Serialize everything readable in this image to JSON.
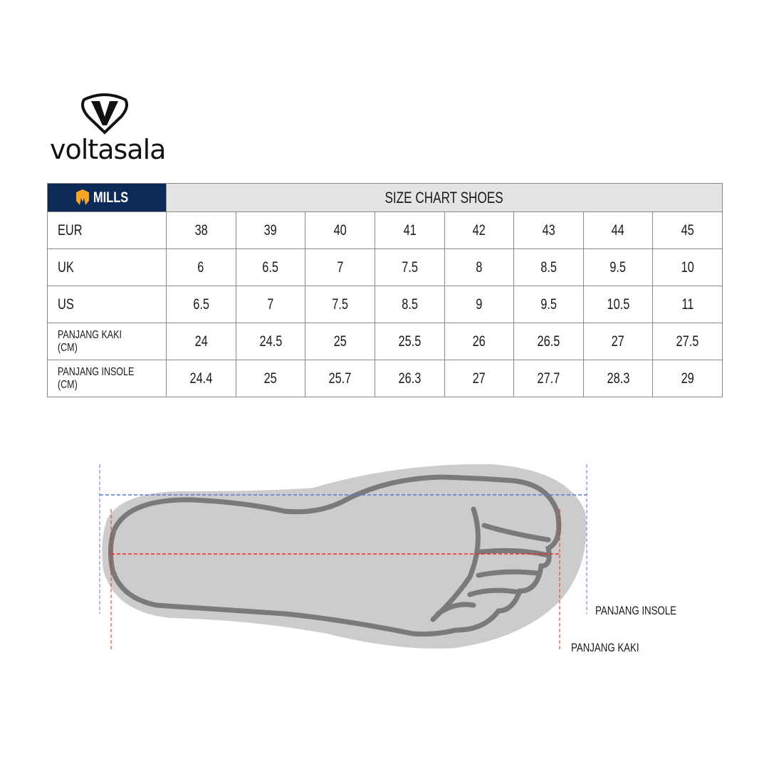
{
  "brand": {
    "logo_text": "voltasala",
    "sub_brand": "MILLS"
  },
  "table": {
    "title": "SIZE CHART SHOES",
    "rows": [
      {
        "label": "EUR",
        "values": [
          "38",
          "39",
          "40",
          "41",
          "42",
          "43",
          "44",
          "45"
        ]
      },
      {
        "label": "UK",
        "values": [
          "6",
          "6.5",
          "7",
          "7.5",
          "8",
          "8.5",
          "9.5",
          "10"
        ]
      },
      {
        "label": "US",
        "values": [
          "6.5",
          "7",
          "7.5",
          "8.5",
          "9",
          "9.5",
          "10.5",
          "11"
        ]
      },
      {
        "label": "PANJANG KAKI (CM)",
        "values": [
          "24",
          "24.5",
          "25",
          "25.5",
          "26",
          "26.5",
          "27",
          "27.5"
        ]
      },
      {
        "label": "PANJANG INSOLE (CM)",
        "values": [
          "24.4",
          "25",
          "25.7",
          "26.3",
          "27",
          "27.7",
          "28.3",
          "29"
        ]
      }
    ]
  },
  "diagram": {
    "insole_label": "PANJANG INSOLE",
    "foot_label": "PANJANG KAKI"
  },
  "colors": {
    "brand_navy": "#0c2a57",
    "mills_gold": "#f5a623",
    "insole_line": "#5a78c0",
    "foot_line": "#e03030"
  }
}
